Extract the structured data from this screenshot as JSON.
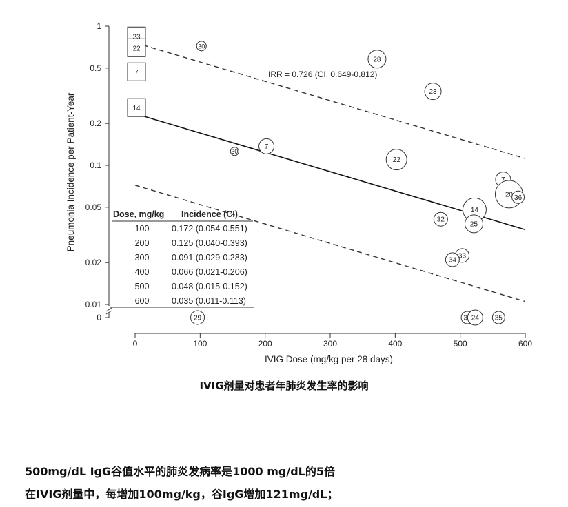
{
  "chart_data": {
    "type": "scatter",
    "xlabel": "IVIG Dose (mg/kg per 28 days)",
    "ylabel": "Pneumonia Incidence per Patient-Year",
    "yscale": "log",
    "xlim": [
      0,
      600
    ],
    "ylim": [
      0.01,
      1
    ],
    "x_ticks": [
      "0",
      "100",
      "200",
      "300",
      "400",
      "500",
      "600"
    ],
    "y_ticks": [
      {
        "value": 1,
        "label": "1"
      },
      {
        "value": 0.5,
        "label": "0.5"
      },
      {
        "value": 0.2,
        "label": "0.2"
      },
      {
        "value": 0.1,
        "label": "0.1"
      },
      {
        "value": 0.05,
        "label": "0.05"
      },
      {
        "value": 0.02,
        "label": "0.02"
      },
      {
        "value": 0.01,
        "label": "0.01"
      }
    ],
    "zero_tick_label": "0",
    "annotation": "IRR = 0.726 (CI, 0.649-0.812)",
    "fit_line": {
      "x": [
        0,
        600
      ],
      "y": [
        0.235,
        0.0345
      ]
    },
    "ci_lines": [
      {
        "x": [
          0,
          600
        ],
        "y": [
          0.76,
          0.112
        ]
      },
      {
        "x": [
          0,
          600
        ],
        "y": [
          0.072,
          0.0105
        ]
      }
    ],
    "squares": [
      {
        "label": "23",
        "x": 0,
        "y": 0.85
      },
      {
        "label": "22",
        "x": 0,
        "y": 0.7
      },
      {
        "label": "7",
        "x": 0,
        "y": 0.47
      },
      {
        "label": "14",
        "x": 0,
        "y": 0.26
      }
    ],
    "circles": [
      {
        "label": "30",
        "x": 102,
        "y": 0.72,
        "size": 7
      },
      {
        "label": "28",
        "x": 372,
        "y": 0.58,
        "size": 13
      },
      {
        "label": "23",
        "x": 458,
        "y": 0.34,
        "size": 12
      },
      {
        "label": "30",
        "x": 153,
        "y": 0.126,
        "size": 6
      },
      {
        "label": "7",
        "x": 202,
        "y": 0.137,
        "size": 11
      },
      {
        "label": "22",
        "x": 402,
        "y": 0.11,
        "size": 15
      },
      {
        "label": "7",
        "x": 566,
        "y": 0.079,
        "size": 11
      },
      {
        "label": "20",
        "x": 575,
        "y": 0.062,
        "size": 20
      },
      {
        "label": "36",
        "x": 589,
        "y": 0.059,
        "size": 9
      },
      {
        "label": "14",
        "x": 522,
        "y": 0.048,
        "size": 17
      },
      {
        "label": "32",
        "x": 470,
        "y": 0.041,
        "size": 10
      },
      {
        "label": "25",
        "x": 521,
        "y": 0.038,
        "size": 13
      },
      {
        "label": "33",
        "x": 503,
        "y": 0.0225,
        "size": 10
      },
      {
        "label": "34",
        "x": 488,
        "y": 0.021,
        "size": 10
      },
      {
        "label": "29",
        "x": 96,
        "y": 0,
        "size": 10
      },
      {
        "label": "31",
        "x": 511,
        "y": 0,
        "size": 9
      },
      {
        "label": "24",
        "x": 523,
        "y": 0,
        "size": 11
      },
      {
        "label": "35",
        "x": 559,
        "y": 0,
        "size": 9
      }
    ],
    "table": {
      "headers": [
        "Dose, mg/kg",
        "Incidence (CI)"
      ],
      "rows": [
        [
          "100",
          "0.172 (0.054-0.551)"
        ],
        [
          "200",
          "0.125 (0.040-0.393)"
        ],
        [
          "300",
          "0.091 (0.029-0.283)"
        ],
        [
          "400",
          "0.066 (0.021-0.206)"
        ],
        [
          "500",
          "0.048 (0.015-0.152)"
        ],
        [
          "600",
          "0.035 (0.011-0.113)"
        ]
      ]
    }
  },
  "caption": "IVIG剂量对患者年肺炎发生率的影响",
  "paragraph_1": "500mg/dL IgG谷值水平的肺炎发病率是1000 mg/dL的5倍",
  "paragraph_2": "在IVIG剂量中，每增加100mg/kg，谷IgG增加121mg/dL；"
}
